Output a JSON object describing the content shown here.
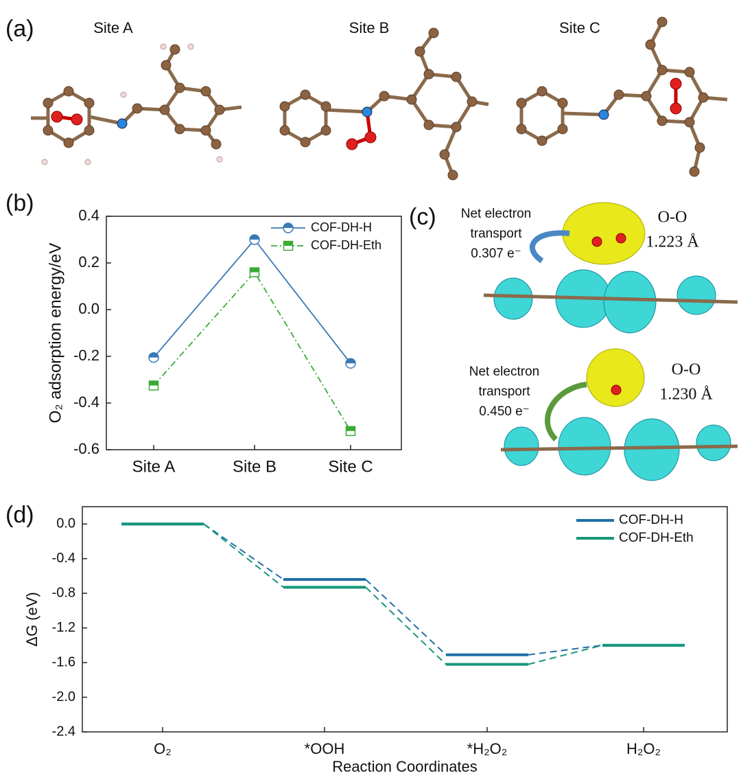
{
  "panels": {
    "a": "(a)",
    "b": "(b)",
    "c": "(c)",
    "d": "(d)"
  },
  "sites": [
    "Site A",
    "Site B",
    "Site C"
  ],
  "annotations": [
    {
      "transport": [
        "Net electron",
        "transport",
        "0.307 e⁻"
      ],
      "bond": "O-O",
      "length": "1.223 Å"
    },
    {
      "transport": [
        "Net electron",
        "transport",
        "0.450 e⁻"
      ],
      "bond": "O-O",
      "length": "1.230 Å"
    }
  ],
  "chart_data": [
    {
      "type": "line",
      "categories": [
        "Site A",
        "Site B",
        "Site C"
      ],
      "ylabel": "O₂ adsorption energy/eV",
      "ylim": [
        -0.6,
        0.4
      ],
      "yticks": [
        -0.6,
        -0.4,
        -0.2,
        {
          "value": 0,
          "label": "0.0"
        },
        0.2,
        0.4
      ],
      "legend": "upper right",
      "series": [
        {
          "name": "COF-DH-H",
          "color": "#3a78b5",
          "values": [
            -0.205,
            0.3,
            -0.23
          ]
        },
        {
          "name": "COF-DH-Eth",
          "color": "#3aaa35",
          "values": [
            -0.325,
            0.16,
            -0.52
          ]
        }
      ]
    },
    {
      "type": "levels",
      "categories": [
        "O₂",
        "*OOH",
        "*H₂O₂",
        "H₂O₂"
      ],
      "xlabel": "Reaction Coordinates",
      "ylabel": "ΔG (eV)",
      "ylim": [
        -2.4,
        0.2
      ],
      "yticks": [
        -2.4,
        {
          "value": -2,
          "label": "-2.0"
        },
        -1.6,
        -1.2,
        -0.8,
        -0.4,
        {
          "value": 0,
          "label": "0.0"
        }
      ],
      "legend": "upper right",
      "series": [
        {
          "name": "COF-DH-H",
          "color": "#1f6fa8",
          "values": [
            0,
            -0.64,
            -1.51,
            -1.4
          ]
        },
        {
          "name": "COF-DH-Eth",
          "color": "#16977b",
          "values": [
            0,
            -0.73,
            -1.62,
            -1.4
          ]
        }
      ]
    }
  ]
}
